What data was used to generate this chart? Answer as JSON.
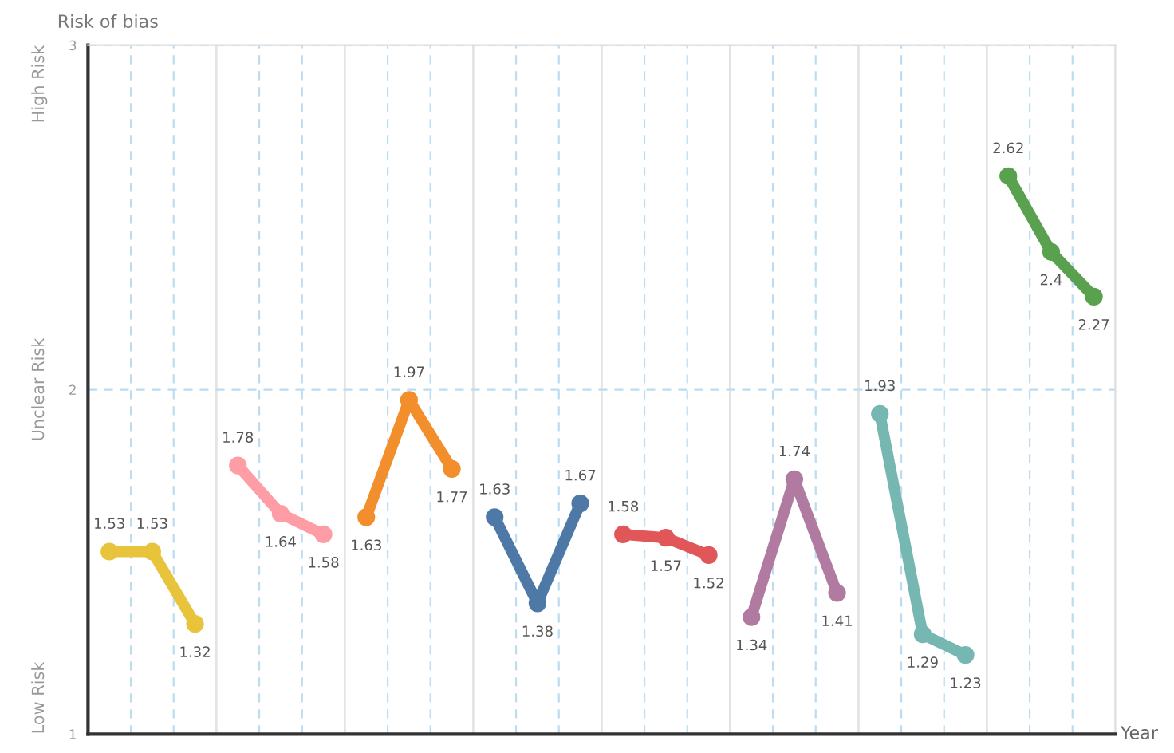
{
  "chart_data": {
    "type": "line",
    "ylabel": "Risk of bias",
    "xlabel": "Year",
    "categories": [
      null,
      null,
      null,
      null,
      null,
      null,
      null,
      null,
      null,
      null,
      null,
      null,
      null,
      null,
      null,
      null,
      null,
      null,
      null,
      null,
      null,
      null,
      null,
      null
    ],
    "series": [
      {
        "color": "#e8c43c",
        "values": [
          1.53,
          1.53,
          1.32,
          null,
          null,
          null,
          null,
          null,
          null,
          null,
          null,
          null,
          null,
          null,
          null,
          null,
          null,
          null,
          null,
          null,
          null,
          null,
          null,
          null
        ]
      },
      {
        "color": "#ff9da7",
        "values": [
          null,
          null,
          null,
          1.78,
          1.64,
          1.58,
          null,
          null,
          null,
          null,
          null,
          null,
          null,
          null,
          null,
          null,
          null,
          null,
          null,
          null,
          null,
          null,
          null,
          null
        ]
      },
      {
        "color": "#f28e2b",
        "values": [
          null,
          null,
          null,
          null,
          null,
          null,
          1.63,
          1.97,
          1.77,
          null,
          null,
          null,
          null,
          null,
          null,
          null,
          null,
          null,
          null,
          null,
          null,
          null,
          null,
          null
        ]
      },
      {
        "color": "#4e79a7",
        "values": [
          null,
          null,
          null,
          null,
          null,
          null,
          null,
          null,
          null,
          1.63,
          1.38,
          1.67,
          null,
          null,
          null,
          null,
          null,
          null,
          null,
          null,
          null,
          null,
          null,
          null
        ]
      },
      {
        "color": "#e15759",
        "values": [
          null,
          null,
          null,
          null,
          null,
          null,
          null,
          null,
          null,
          null,
          null,
          null,
          1.58,
          1.57,
          1.52,
          null,
          null,
          null,
          null,
          null,
          null,
          null,
          null,
          null
        ]
      },
      {
        "color": "#b07aa1",
        "values": [
          null,
          null,
          null,
          null,
          null,
          null,
          null,
          null,
          null,
          null,
          null,
          null,
          null,
          null,
          null,
          1.34,
          1.74,
          1.41,
          null,
          null,
          null,
          null,
          null,
          null
        ]
      },
      {
        "color": "#76b7b2",
        "values": [
          null,
          null,
          null,
          null,
          null,
          null,
          null,
          null,
          null,
          null,
          null,
          null,
          null,
          null,
          null,
          null,
          null,
          null,
          1.93,
          1.29,
          1.23,
          null,
          null,
          null
        ]
      },
      {
        "color": "#59a14f",
        "values": [
          null,
          null,
          null,
          null,
          null,
          null,
          null,
          null,
          null,
          null,
          null,
          null,
          null,
          null,
          null,
          null,
          null,
          null,
          null,
          null,
          null,
          2.62,
          2.4,
          2.27
        ]
      }
    ],
    "ylim": [
      1,
      3
    ],
    "yticks": [
      1,
      2,
      3
    ],
    "annotations": [
      "Low Risk",
      "Unclear Risk",
      "High Risk"
    ],
    "grid": true,
    "marker": "circle",
    "line_style": "solid",
    "data_labels": true
  }
}
